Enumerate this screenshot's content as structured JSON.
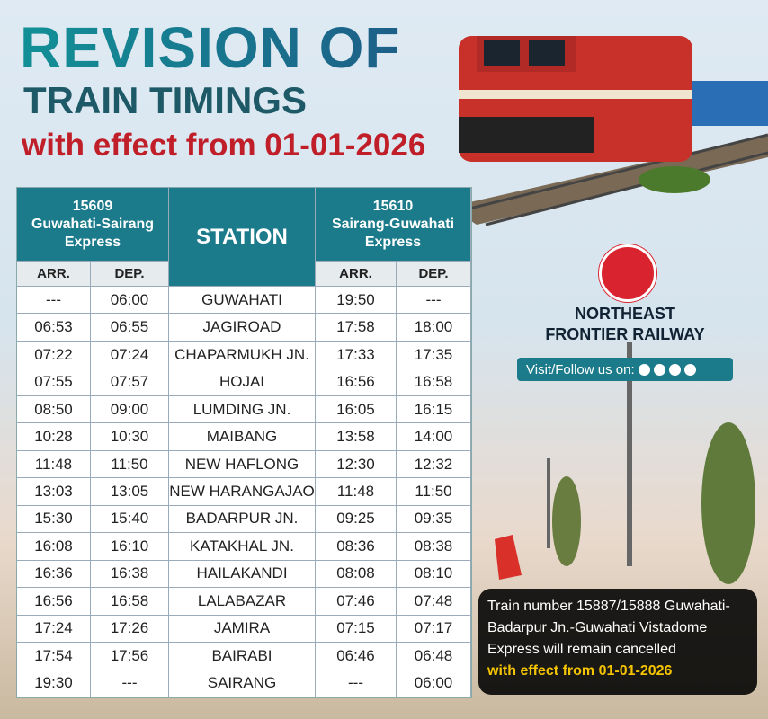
{
  "header": {
    "title": "REVISION OF",
    "subtitle": "TRAIN TIMINGS",
    "effective": "with effect from 01-01-2026"
  },
  "table": {
    "left": {
      "train_no": "15609",
      "train_name": "Guwahati-Sairang Express",
      "arr": "ARR.",
      "dep": "DEP."
    },
    "station_header": "STATION",
    "right": {
      "train_no": "15610",
      "train_name": "Sairang-Guwahati Express",
      "arr": "ARR.",
      "dep": "DEP."
    },
    "rows": [
      [
        "---",
        "06:00",
        "GUWAHATI",
        "19:50",
        "---"
      ],
      [
        "06:53",
        "06:55",
        "JAGIROAD",
        "17:58",
        "18:00"
      ],
      [
        "07:22",
        "07:24",
        "CHAPARMUKH JN.",
        "17:33",
        "17:35"
      ],
      [
        "07:55",
        "07:57",
        "HOJAI",
        "16:56",
        "16:58"
      ],
      [
        "08:50",
        "09:00",
        "LUMDING JN.",
        "16:05",
        "16:15"
      ],
      [
        "10:28",
        "10:30",
        "MAIBANG",
        "13:58",
        "14:00"
      ],
      [
        "11:48",
        "11:50",
        "NEW HAFLONG",
        "12:30",
        "12:32"
      ],
      [
        "13:03",
        "13:05",
        "NEW HARANGAJAO",
        "11:48",
        "11:50"
      ],
      [
        "15:30",
        "15:40",
        "BADARPUR JN.",
        "09:25",
        "09:35"
      ],
      [
        "16:08",
        "16:10",
        "KATAKHAL JN.",
        "08:36",
        "08:38"
      ],
      [
        "16:36",
        "16:38",
        "HAILAKANDI",
        "08:08",
        "08:10"
      ],
      [
        "16:56",
        "16:58",
        "LALABAZAR",
        "07:46",
        "07:48"
      ],
      [
        "17:24",
        "17:26",
        "JAMIRA",
        "07:15",
        "07:17"
      ],
      [
        "17:54",
        "17:56",
        "BAIRABI",
        "06:46",
        "06:48"
      ],
      [
        "19:30",
        "---",
        "SAIRANG",
        "---",
        "06:00"
      ]
    ]
  },
  "railway": {
    "name_lines": [
      "NORTHEAST",
      "FRONTIER RAILWAY"
    ],
    "follow": "Visit/Follow us on:"
  },
  "notice": {
    "text": "Train number 15887/15888 Guwahati-Badarpur Jn.-Guwahati Vistadome Express will remain cancelled",
    "effective": "with effect from 01-01-2026"
  }
}
